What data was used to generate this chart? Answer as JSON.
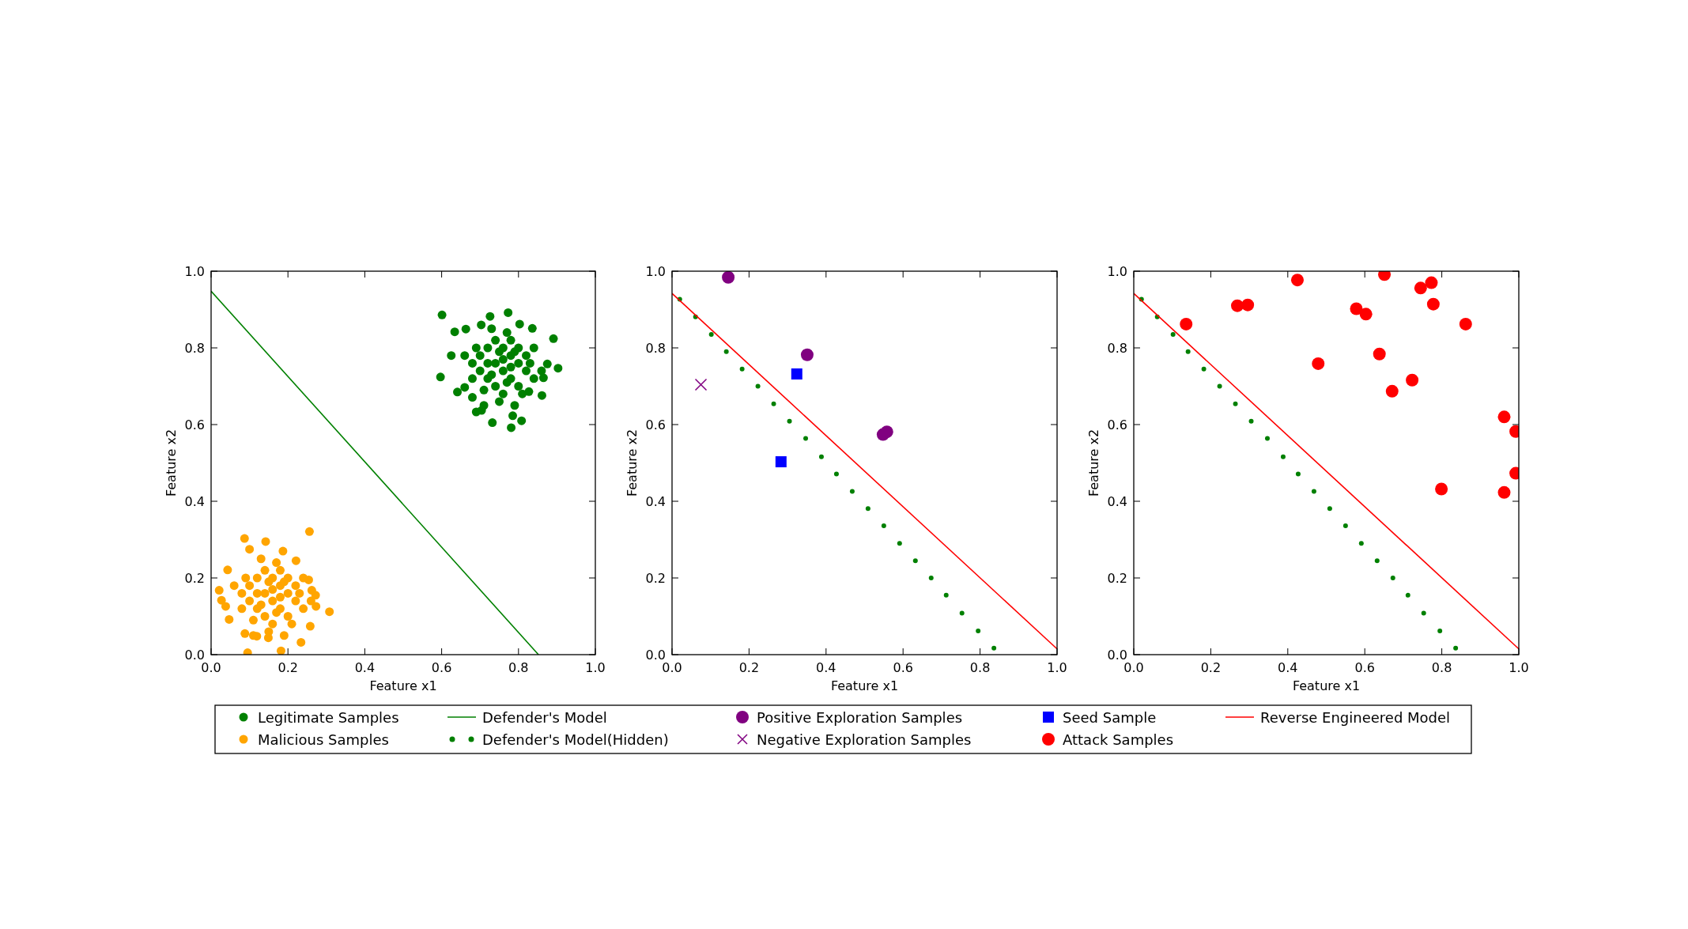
{
  "chart_data": [
    {
      "type": "scatter",
      "xlabel": "Feature x1",
      "ylabel": "Feature x2",
      "xlim": [
        0,
        1
      ],
      "ylim": [
        0,
        1
      ],
      "xticks": [
        {
          "value": 0,
          "label": "0.0"
        },
        {
          "value": 0.2,
          "label": "0.2"
        },
        {
          "value": 0.4,
          "label": "0.4"
        },
        {
          "value": 0.6,
          "label": "0.6"
        },
        {
          "value": 0.8,
          "label": "0.8"
        },
        {
          "value": 1,
          "label": "1.0"
        }
      ],
      "yticks": [
        {
          "value": 0,
          "label": "0.0"
        },
        {
          "value": 0.2,
          "label": "0.2"
        },
        {
          "value": 0.4,
          "label": "0.4"
        },
        {
          "value": 0.6,
          "label": "0.6"
        },
        {
          "value": 0.8,
          "label": "0.8"
        },
        {
          "value": 1,
          "label": "1.0"
        }
      ],
      "grid": false,
      "legend": "bottom",
      "series": [
        {
          "name": "Legitimate Samples",
          "marker": "circle",
          "color": "#008000",
          "x": [
            0.601,
            0.597,
            0.773,
            0.726,
            0.903,
            0.891,
            0.781,
            0.808,
            0.69,
            0.732,
            0.634,
            0.625,
            0.641,
            0.861,
            0.865,
            0.836,
            0.803,
            0.703,
            0.663,
            0.875,
            0.785,
            0.704,
            0.66,
            0.68,
            0.827,
            0.7,
            0.72,
            0.74,
            0.76,
            0.78,
            0.8,
            0.82,
            0.74,
            0.76,
            0.78,
            0.72,
            0.7,
            0.74,
            0.76,
            0.8,
            0.82,
            0.78,
            0.68,
            0.68,
            0.84,
            0.8,
            0.72,
            0.76,
            0.78,
            0.75,
            0.73,
            0.77,
            0.79,
            0.71,
            0.81,
            0.84,
            0.66,
            0.69,
            0.75,
            0.79,
            0.83,
            0.77,
            0.73,
            0.71,
            0.86
          ],
          "values": [
            0.886,
            0.724,
            0.892,
            0.882,
            0.747,
            0.824,
            0.592,
            0.61,
            0.633,
            0.605,
            0.842,
            0.78,
            0.685,
            0.676,
            0.722,
            0.851,
            0.862,
            0.86,
            0.849,
            0.758,
            0.623,
            0.637,
            0.697,
            0.671,
            0.686,
            0.78,
            0.8,
            0.82,
            0.8,
            0.78,
            0.76,
            0.74,
            0.76,
            0.74,
            0.72,
            0.72,
            0.74,
            0.7,
            0.68,
            0.7,
            0.78,
            0.82,
            0.76,
            0.72,
            0.72,
            0.8,
            0.76,
            0.77,
            0.75,
            0.79,
            0.73,
            0.71,
            0.79,
            0.69,
            0.68,
            0.8,
            0.78,
            0.8,
            0.66,
            0.65,
            0.76,
            0.84,
            0.85,
            0.65,
            0.74
          ]
        },
        {
          "name": "Malicious Samples",
          "marker": "circle",
          "color": "#ffa500",
          "x": [
            0.256,
            0.087,
            0.142,
            0.021,
            0.027,
            0.308,
            0.273,
            0.272,
            0.095,
            0.182,
            0.234,
            0.088,
            0.047,
            0.043,
            0.187,
            0.1,
            0.254,
            0.221,
            0.258,
            0.119,
            0.149,
            0.038,
            0.262,
            0.1,
            0.12,
            0.14,
            0.16,
            0.18,
            0.2,
            0.22,
            0.14,
            0.16,
            0.18,
            0.12,
            0.1,
            0.14,
            0.16,
            0.2,
            0.22,
            0.18,
            0.08,
            0.08,
            0.24,
            0.2,
            0.12,
            0.16,
            0.18,
            0.15,
            0.13,
            0.17,
            0.19,
            0.11,
            0.21,
            0.24,
            0.06,
            0.09,
            0.15,
            0.19,
            0.23,
            0.17,
            0.13,
            0.11,
            0.26
          ],
          "values": [
            0.321,
            0.303,
            0.295,
            0.168,
            0.142,
            0.112,
            0.126,
            0.155,
            0.005,
            0.01,
            0.032,
            0.055,
            0.092,
            0.221,
            0.27,
            0.275,
            0.195,
            0.245,
            0.074,
            0.048,
            0.044,
            0.126,
            0.168,
            0.18,
            0.2,
            0.22,
            0.2,
            0.18,
            0.16,
            0.14,
            0.16,
            0.14,
            0.12,
            0.12,
            0.14,
            0.1,
            0.08,
            0.1,
            0.18,
            0.22,
            0.16,
            0.12,
            0.12,
            0.2,
            0.16,
            0.17,
            0.15,
            0.19,
            0.13,
            0.11,
            0.19,
            0.09,
            0.08,
            0.2,
            0.18,
            0.2,
            0.06,
            0.05,
            0.16,
            0.24,
            0.25,
            0.05,
            0.14
          ]
        },
        {
          "name": "Defender's Model",
          "type": "line",
          "marker": "none",
          "line_style": "solid",
          "color": "#008000",
          "x": [
            0,
            0.852
          ],
          "values": [
            0.948,
            0
          ]
        }
      ]
    },
    {
      "type": "scatter",
      "xlabel": "Feature x1",
      "ylabel": "Feature x2",
      "xlim": [
        0,
        1
      ],
      "ylim": [
        0,
        1
      ],
      "xticks": [
        {
          "value": 0,
          "label": "0.0"
        },
        {
          "value": 0.2,
          "label": "0.2"
        },
        {
          "value": 0.4,
          "label": "0.4"
        },
        {
          "value": 0.6,
          "label": "0.6"
        },
        {
          "value": 0.8,
          "label": "0.8"
        },
        {
          "value": 1,
          "label": "1.0"
        }
      ],
      "yticks": [
        {
          "value": 0,
          "label": "0.0"
        },
        {
          "value": 0.2,
          "label": "0.2"
        },
        {
          "value": 0.4,
          "label": "0.4"
        },
        {
          "value": 0.6,
          "label": "0.6"
        },
        {
          "value": 0.8,
          "label": "0.8"
        },
        {
          "value": 1,
          "label": "1.0"
        }
      ],
      "grid": false,
      "legend": "bottom",
      "series": [
        {
          "name": "Defender's Model(Hidden)",
          "marker": "circle",
          "color": "#008000",
          "x": [
            0.02,
            0.061,
            0.102,
            0.141,
            0.182,
            0.223,
            0.264,
            0.305,
            0.347,
            0.388,
            0.427,
            0.468,
            0.509,
            0.55,
            0.591,
            0.632,
            0.673,
            0.712,
            0.753,
            0.795,
            0.836
          ],
          "values": [
            0.927,
            0.881,
            0.835,
            0.79,
            0.745,
            0.7,
            0.654,
            0.609,
            0.564,
            0.516,
            0.471,
            0.426,
            0.381,
            0.336,
            0.29,
            0.245,
            0.2,
            0.155,
            0.108,
            0.062,
            0.017
          ]
        },
        {
          "name": "Positive Exploration Samples",
          "marker": "circle",
          "color": "#800080",
          "x": [
            0.146,
            0.351,
            0.548,
            0.558
          ],
          "values": [
            0.984,
            0.782,
            0.574,
            0.581
          ]
        },
        {
          "name": "Negative Exploration Samples",
          "marker": "cross",
          "color": "#800080",
          "x": [
            0.075
          ],
          "values": [
            0.704
          ]
        },
        {
          "name": "Seed Sample",
          "marker": "square",
          "color": "#0000ff",
          "x": [
            0.324,
            0.283
          ],
          "values": [
            0.732,
            0.503
          ]
        },
        {
          "name": "Reverse Engineered Model",
          "type": "line",
          "marker": "none",
          "line_style": "solid",
          "color": "#ff0000",
          "x": [
            0,
            1
          ],
          "values": [
            0.942,
            0.015
          ]
        }
      ]
    },
    {
      "type": "scatter",
      "xlabel": "Feature x1",
      "ylabel": "Feature x2",
      "xlim": [
        0,
        1
      ],
      "ylim": [
        0,
        1
      ],
      "xticks": [
        {
          "value": 0,
          "label": "0.0"
        },
        {
          "value": 0.2,
          "label": "0.2"
        },
        {
          "value": 0.4,
          "label": "0.4"
        },
        {
          "value": 0.6,
          "label": "0.6"
        },
        {
          "value": 0.8,
          "label": "0.8"
        },
        {
          "value": 1,
          "label": "1.0"
        }
      ],
      "yticks": [
        {
          "value": 0,
          "label": "0.0"
        },
        {
          "value": 0.2,
          "label": "0.2"
        },
        {
          "value": 0.4,
          "label": "0.4"
        },
        {
          "value": 0.6,
          "label": "0.6"
        },
        {
          "value": 0.8,
          "label": "0.8"
        },
        {
          "value": 1,
          "label": "1.0"
        }
      ],
      "grid": false,
      "legend": "bottom",
      "series": [
        {
          "marker": "circle",
          "color": "#008000",
          "x": [
            0.02,
            0.061,
            0.102,
            0.141,
            0.182,
            0.223,
            0.264,
            0.305,
            0.347,
            0.388,
            0.427,
            0.468,
            0.509,
            0.55,
            0.591,
            0.632,
            0.673,
            0.712,
            0.753,
            0.795,
            0.836
          ],
          "values": [
            0.927,
            0.881,
            0.835,
            0.79,
            0.745,
            0.7,
            0.654,
            0.609,
            0.564,
            0.516,
            0.471,
            0.426,
            0.381,
            0.336,
            0.29,
            0.245,
            0.2,
            0.155,
            0.108,
            0.062,
            0.017
          ]
        },
        {
          "name": "Attack Samples",
          "marker": "circle",
          "color": "#ff0000",
          "x": [
            0.136,
            0.269,
            0.296,
            0.425,
            0.651,
            0.745,
            0.773,
            0.778,
            0.578,
            0.603,
            0.862,
            0.638,
            0.479,
            0.723,
            0.671,
            0.962,
            0.992,
            0.992,
            0.799,
            0.962
          ],
          "values": [
            0.862,
            0.91,
            0.912,
            0.977,
            0.991,
            0.956,
            0.97,
            0.914,
            0.902,
            0.888,
            0.862,
            0.784,
            0.759,
            0.716,
            0.687,
            0.62,
            0.582,
            0.473,
            0.432,
            0.423
          ]
        },
        {
          "name": "Reverse Engineered Model",
          "type": "line",
          "marker": "none",
          "line_style": "solid",
          "color": "#ff0000",
          "x": [
            0,
            1
          ],
          "values": [
            0.942,
            0.015
          ]
        }
      ]
    }
  ]
}
